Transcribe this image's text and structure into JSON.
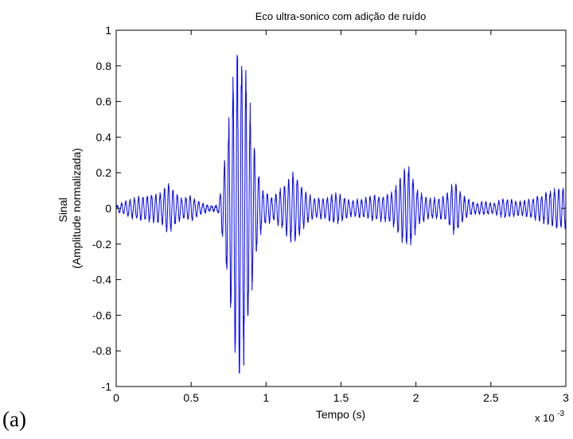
{
  "panel_label": "(a)",
  "chart_data": {
    "type": "line",
    "title": "Eco ultra-sonico com adição de ruído",
    "xlabel": "Tempo (s)",
    "ylabel_lines": [
      "Sinal",
      "(Amplitude normalizada)"
    ],
    "x_exponent_label": "x 10",
    "x_exponent_power": "-3",
    "xlim": [
      0,
      0.003
    ],
    "ylim": [
      -1,
      1
    ],
    "x_ticks": [
      0,
      0.0005,
      0.001,
      0.0015,
      0.002,
      0.0025,
      0.003
    ],
    "x_tick_labels": [
      "0",
      "0.5",
      "1",
      "1.5",
      "2",
      "2.5",
      "3"
    ],
    "y_ticks": [
      -1,
      -0.8,
      -0.6,
      -0.4,
      -0.2,
      0,
      0.2,
      0.4,
      0.6,
      0.8,
      1
    ],
    "y_tick_labels": [
      "-1",
      "-0.8",
      "-0.6",
      "-0.4",
      "-0.2",
      "0",
      "0.2",
      "0.4",
      "0.6",
      "0.8",
      "1"
    ],
    "grid": false,
    "line_color": "#0000ff",
    "series": [
      {
        "oscillation_period_s": 2.86e-05,
        "envelope": [
          [
            0.0,
            0.01
          ],
          [
            3e-05,
            0.03
          ],
          [
            8e-05,
            0.05
          ],
          [
            0.00015,
            0.07
          ],
          [
            0.00022,
            0.08
          ],
          [
            0.0003,
            0.09
          ],
          [
            0.00035,
            0.16
          ],
          [
            0.0004,
            0.09
          ],
          [
            0.00045,
            0.06
          ],
          [
            0.0005,
            0.08
          ],
          [
            0.00055,
            0.04
          ],
          [
            0.00062,
            0.015
          ],
          [
            0.00068,
            0.02
          ],
          [
            0.0007,
            0.12
          ],
          [
            0.00072,
            0.25
          ],
          [
            0.00074,
            0.45
          ],
          [
            0.00076,
            0.6
          ],
          [
            0.00078,
            0.78
          ],
          [
            0.0008,
            0.92
          ],
          [
            0.00082,
            1.0
          ],
          [
            0.00084,
            0.98
          ],
          [
            0.00086,
            0.88
          ],
          [
            0.00088,
            0.72
          ],
          [
            0.0009,
            0.55
          ],
          [
            0.00092,
            0.38
          ],
          [
            0.00094,
            0.25
          ],
          [
            0.00096,
            0.18
          ],
          [
            0.00098,
            0.1
          ],
          [
            0.001,
            0.1
          ],
          [
            0.00104,
            0.07
          ],
          [
            0.0011,
            0.12
          ],
          [
            0.00116,
            0.18
          ],
          [
            0.00119,
            0.23
          ],
          [
            0.00122,
            0.16
          ],
          [
            0.00126,
            0.1
          ],
          [
            0.00132,
            0.06
          ],
          [
            0.0014,
            0.06
          ],
          [
            0.00146,
            0.1
          ],
          [
            0.0015,
            0.08
          ],
          [
            0.00156,
            0.05
          ],
          [
            0.0016,
            0.05
          ],
          [
            0.00166,
            0.06
          ],
          [
            0.00172,
            0.08
          ],
          [
            0.00178,
            0.07
          ],
          [
            0.00184,
            0.1
          ],
          [
            0.00188,
            0.15
          ],
          [
            0.00192,
            0.24
          ],
          [
            0.00195,
            0.25
          ],
          [
            0.00198,
            0.18
          ],
          [
            0.00202,
            0.1
          ],
          [
            0.00208,
            0.06
          ],
          [
            0.00214,
            0.06
          ],
          [
            0.0022,
            0.08
          ],
          [
            0.00226,
            0.17
          ],
          [
            0.0023,
            0.09
          ],
          [
            0.00234,
            0.06
          ],
          [
            0.0024,
            0.03
          ],
          [
            0.00246,
            0.04
          ],
          [
            0.00252,
            0.03
          ],
          [
            0.00258,
            0.06
          ],
          [
            0.00264,
            0.05
          ],
          [
            0.0027,
            0.04
          ],
          [
            0.00276,
            0.06
          ],
          [
            0.00282,
            0.08
          ],
          [
            0.00288,
            0.1
          ],
          [
            0.00294,
            0.12
          ],
          [
            0.003,
            0.12
          ]
        ]
      }
    ]
  }
}
